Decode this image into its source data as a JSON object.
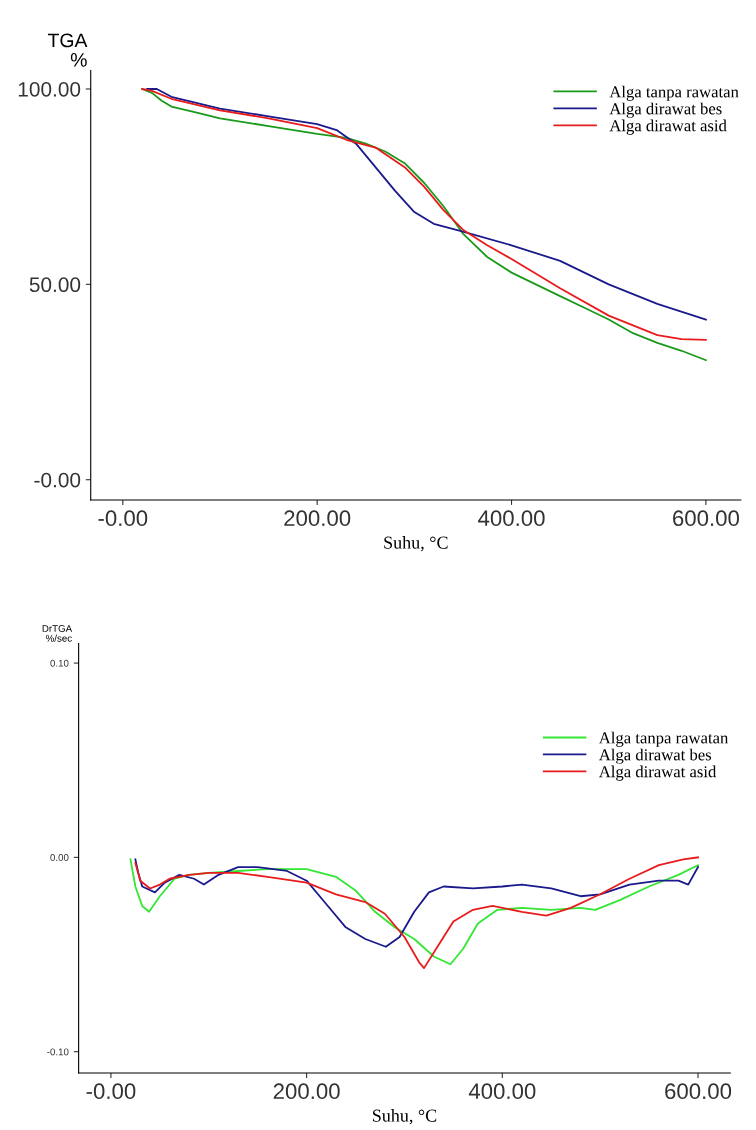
{
  "chart_data": [
    {
      "type": "line",
      "ylabel": "TGA\n%",
      "xlabel": "Suhu, °C",
      "xlim": [
        -33,
        636
      ],
      "ylim": [
        -5.2,
        104.7
      ],
      "xticks": [
        {
          "value": 0,
          "label": "-0.00"
        },
        {
          "value": 200,
          "label": "200.00"
        },
        {
          "value": 400,
          "label": "400.00"
        },
        {
          "value": 600,
          "label": "600.00"
        }
      ],
      "yticks": [
        {
          "value": 0,
          "label": "-0.00"
        },
        {
          "value": 50,
          "label": "50.00"
        },
        {
          "value": 100,
          "label": "100.00"
        }
      ],
      "legend": "top right",
      "grid": false,
      "marker": "none",
      "line_style": "solid",
      "series": [
        {
          "name": "Alga tanpa rawatan",
          "color": "#1a9a1a",
          "x": [
            20,
            30,
            40,
            50,
            75,
            100,
            150,
            200,
            230,
            250,
            270,
            290,
            310,
            330,
            350,
            375,
            400,
            450,
            475,
            500,
            525,
            550,
            575,
            600
          ],
          "values": [
            100,
            99,
            97,
            95.5,
            94,
            92.5,
            90.5,
            88.5,
            87.5,
            86,
            84,
            81,
            76,
            70,
            63,
            57,
            53,
            47,
            44,
            41,
            37.5,
            35,
            33,
            30.6
          ]
        },
        {
          "name": "Alga dirawat bes",
          "color": "#1a1a8c",
          "x": [
            25,
            35,
            50,
            100,
            150,
            200,
            220,
            240,
            260,
            280,
            300,
            320,
            350,
            400,
            450,
            500,
            550,
            600
          ],
          "values": [
            100,
            100,
            98,
            95,
            93,
            91,
            89.5,
            86,
            80,
            74,
            68.5,
            65.5,
            63.5,
            60,
            56,
            50,
            45,
            41
          ]
        },
        {
          "name": "Alga dirawat asid",
          "color": "#e81c1c",
          "x": [
            20,
            30,
            50,
            100,
            150,
            200,
            230,
            260,
            290,
            310,
            330,
            350,
            375,
            400,
            450,
            500,
            525,
            550,
            575,
            600
          ],
          "values": [
            100,
            99.5,
            97.5,
            94.5,
            92.5,
            90,
            87,
            85,
            80,
            75,
            69,
            64,
            60,
            56.5,
            49,
            42,
            39.5,
            37,
            36,
            35.8
          ]
        }
      ]
    },
    {
      "type": "line",
      "ylabel": "DrTGA\n%/sec",
      "xlabel": "Suhu, °C",
      "xlim": [
        -33,
        633
      ],
      "ylim": [
        -0.111,
        0.11
      ],
      "xticks": [
        {
          "value": 0,
          "label": "-0.00"
        },
        {
          "value": 200,
          "label": "200.00"
        },
        {
          "value": 400,
          "label": "400.00"
        },
        {
          "value": 600,
          "label": "600.00"
        }
      ],
      "yticks": [
        {
          "value": -0.1,
          "label": "-0.10"
        },
        {
          "value": 0,
          "label": "0.00"
        },
        {
          "value": 0.1,
          "label": "0.10"
        }
      ],
      "legend": "top right",
      "grid": false,
      "marker": "none",
      "line_style": "solid",
      "series": [
        {
          "name": "Alga tanpa rawatan",
          "color": "#33e633",
          "x": [
            20,
            25,
            32,
            39,
            50,
            65,
            80,
            100,
            130,
            160,
            200,
            230,
            250,
            270,
            290,
            310,
            330,
            347,
            360,
            375,
            395,
            420,
            450,
            480,
            495,
            520,
            550,
            580,
            600
          ],
          "values": [
            -0.001,
            -0.015,
            -0.025,
            -0.028,
            -0.02,
            -0.011,
            -0.009,
            -0.008,
            -0.007,
            -0.006,
            -0.006,
            -0.01,
            -0.017,
            -0.028,
            -0.036,
            -0.042,
            -0.051,
            -0.055,
            -0.047,
            -0.034,
            -0.027,
            -0.026,
            -0.027,
            -0.026,
            -0.027,
            -0.022,
            -0.015,
            -0.009,
            -0.004
          ]
        },
        {
          "name": "Alga dirawat bes",
          "color": "#1a1a8c",
          "x": [
            25,
            28,
            32,
            45,
            55,
            70,
            85,
            95,
            110,
            130,
            150,
            180,
            200,
            220,
            240,
            260,
            281,
            295,
            310,
            325,
            340,
            370,
            400,
            420,
            450,
            480,
            500,
            530,
            560,
            580,
            590,
            600
          ],
          "values": [
            -0.001,
            -0.008,
            -0.015,
            -0.018,
            -0.013,
            -0.009,
            -0.011,
            -0.014,
            -0.009,
            -0.005,
            -0.005,
            -0.007,
            -0.012,
            -0.024,
            -0.036,
            -0.042,
            -0.046,
            -0.041,
            -0.028,
            -0.018,
            -0.015,
            -0.016,
            -0.015,
            -0.014,
            -0.016,
            -0.02,
            -0.019,
            -0.014,
            -0.012,
            -0.012,
            -0.014,
            -0.005
          ]
        },
        {
          "name": "Alga dirawat asid",
          "color": "#e81c1c",
          "x": [
            25,
            30,
            40,
            50,
            60,
            80,
            100,
            130,
            160,
            200,
            230,
            260,
            280,
            300,
            315,
            320,
            335,
            350,
            370,
            390,
            420,
            445,
            470,
            500,
            530,
            560,
            585,
            600
          ],
          "values": [
            -0.003,
            -0.012,
            -0.016,
            -0.014,
            -0.011,
            -0.009,
            -0.008,
            -0.008,
            -0.01,
            -0.013,
            -0.019,
            -0.023,
            -0.029,
            -0.041,
            -0.054,
            -0.057,
            -0.045,
            -0.033,
            -0.027,
            -0.025,
            -0.028,
            -0.03,
            -0.026,
            -0.019,
            -0.011,
            -0.004,
            -0.001,
            0
          ]
        }
      ]
    }
  ]
}
